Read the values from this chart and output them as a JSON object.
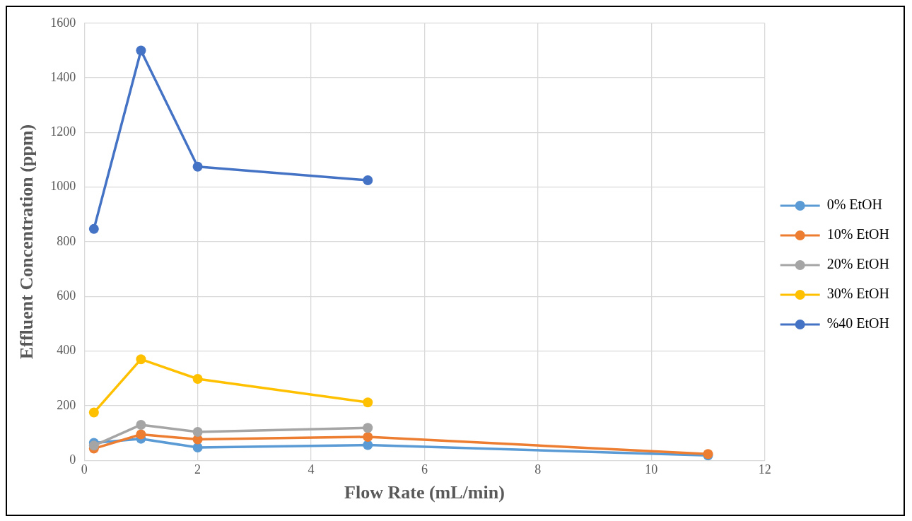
{
  "chart_data": {
    "type": "line",
    "xlabel": "Flow Rate (mL/min)",
    "ylabel": "Effluent Concentration (ppm)",
    "xlim": [
      0,
      12
    ],
    "xticks": [
      0,
      2,
      4,
      6,
      8,
      10,
      12
    ],
    "ylim": [
      0,
      1600
    ],
    "yticks": [
      0,
      200,
      400,
      600,
      800,
      1000,
      1200,
      1400,
      1600
    ],
    "grid": true,
    "legend": "right",
    "marker": "circle",
    "line_style": "solid",
    "series": [
      {
        "name": "0% EtOH",
        "color": "#5b9bd5",
        "x": [
          0.17,
          1,
          2,
          5,
          11
        ],
        "values": [
          64,
          79,
          47,
          56,
          18
        ]
      },
      {
        "name": "10% EtOH",
        "color": "#ed7d31",
        "x": [
          0.17,
          1,
          2,
          5,
          11
        ],
        "values": [
          43,
          95,
          77,
          86,
          23
        ]
      },
      {
        "name": "20% EtOH",
        "color": "#a5a5a5",
        "x": [
          0.17,
          1,
          2,
          5
        ],
        "values": [
          54,
          130,
          104,
          119
        ]
      },
      {
        "name": "30% EtOH",
        "color": "#ffc000",
        "x": [
          0.17,
          1,
          2,
          5
        ],
        "values": [
          175,
          370,
          298,
          212
        ]
      },
      {
        "name": "%40 EtOH",
        "color": "#4472c4",
        "x": [
          0.17,
          1,
          2,
          5
        ],
        "values": [
          847,
          1500,
          1075,
          1025
        ]
      }
    ]
  }
}
